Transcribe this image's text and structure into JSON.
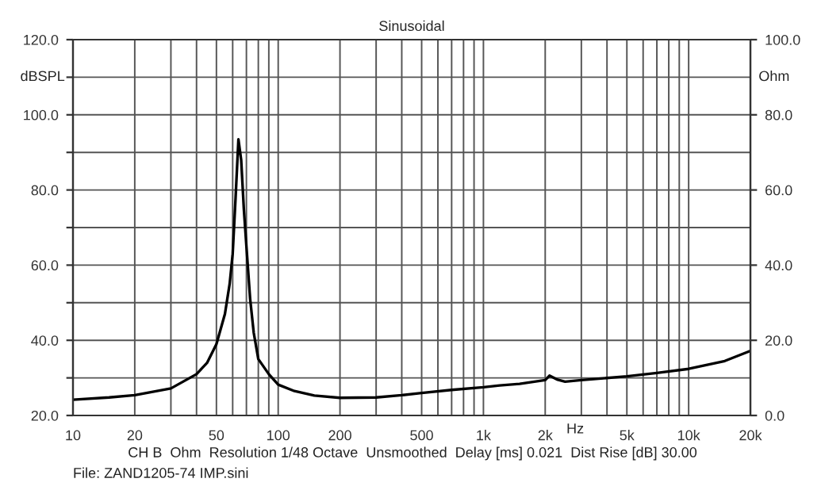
{
  "chart_data": {
    "type": "line",
    "title": "Sinusoidal",
    "xlabel": "Hz",
    "ylabel": "dBSPL",
    "y2label": "Ohm",
    "annotations": [
      "CH B  Ohm  Resolution 1/48 Octave  Unsmoothed  Delay [ms] 0.021  Dist Rise [dB] 30.00",
      "File: ZAND1205-74 IMP.sini"
    ],
    "log": "x",
    "grid": true,
    "legend": false,
    "x": [
      10,
      15,
      20,
      30,
      40,
      45,
      50,
      55,
      58,
      60,
      62,
      64,
      66,
      68,
      70,
      73,
      76,
      80,
      90,
      100,
      120,
      150,
      200,
      300,
      400,
      500,
      700,
      1000,
      1200,
      1500,
      2000,
      2100,
      2300,
      2500,
      3000,
      5000,
      7000,
      10000,
      15000,
      20000
    ],
    "series": [
      {
        "color": "#000000",
        "axis": "y2",
        "values": [
          4.2,
          4.8,
          5.4,
          7.2,
          11,
          14,
          19,
          27,
          35,
          43,
          58,
          73.5,
          68,
          55,
          45,
          31,
          22,
          15,
          11,
          8.2,
          6.5,
          5.3,
          4.7,
          4.8,
          5.4,
          6,
          6.8,
          7.5,
          8,
          8.4,
          9.4,
          10.6,
          9.5,
          9,
          9.4,
          10.4,
          11.3,
          12.4,
          14.5,
          17.2
        ]
      }
    ],
    "xlim": [
      10,
      20000
    ],
    "xticks": [
      10,
      20,
      {
        "value": 30,
        "label": null
      },
      {
        "value": 40,
        "label": null
      },
      50,
      {
        "value": 60,
        "label": null
      },
      {
        "value": 70,
        "label": null
      },
      {
        "value": 80,
        "label": null
      },
      {
        "value": 90,
        "label": null
      },
      100,
      200,
      {
        "value": 300,
        "label": null
      },
      {
        "value": 400,
        "label": null
      },
      500,
      {
        "value": 600,
        "label": null
      },
      {
        "value": 700,
        "label": null
      },
      {
        "value": 800,
        "label": null
      },
      {
        "value": 900,
        "label": null
      },
      {
        "value": 1000,
        "label": "1k"
      },
      {
        "value": 2000,
        "label": "2k"
      },
      {
        "value": 3000,
        "label": null
      },
      {
        "value": 4000,
        "label": null
      },
      {
        "value": 5000,
        "label": "5k"
      },
      {
        "value": 6000,
        "label": null
      },
      {
        "value": 7000,
        "label": null
      },
      {
        "value": 8000,
        "label": null
      },
      {
        "value": 9000,
        "label": null
      },
      {
        "value": 10000,
        "label": "10k"
      },
      {
        "value": 20000,
        "label": "20k"
      }
    ],
    "ylim": [
      20,
      120
    ],
    "yticks": [
      {
        "value": 20,
        "label": "20.0"
      },
      {
        "value": 30,
        "label": null
      },
      {
        "value": 40,
        "label": "40.0"
      },
      {
        "value": 50,
        "label": null
      },
      {
        "value": 60,
        "label": "60.0"
      },
      {
        "value": 70,
        "label": null
      },
      {
        "value": 80,
        "label": "80.0"
      },
      {
        "value": 90,
        "label": null
      },
      {
        "value": 100,
        "label": "100.0"
      },
      {
        "value": 110,
        "label": null
      },
      {
        "value": 120,
        "label": "120.0"
      }
    ],
    "y2lim": [
      0,
      100
    ],
    "y2ticks": [
      {
        "value": 0,
        "label": "0.0"
      },
      {
        "value": 20,
        "label": "20.0"
      },
      {
        "value": 40,
        "label": "40.0"
      },
      {
        "value": 60,
        "label": "60.0"
      },
      {
        "value": 80,
        "label": "80.0"
      },
      {
        "value": 100,
        "label": "100.0"
      }
    ]
  }
}
